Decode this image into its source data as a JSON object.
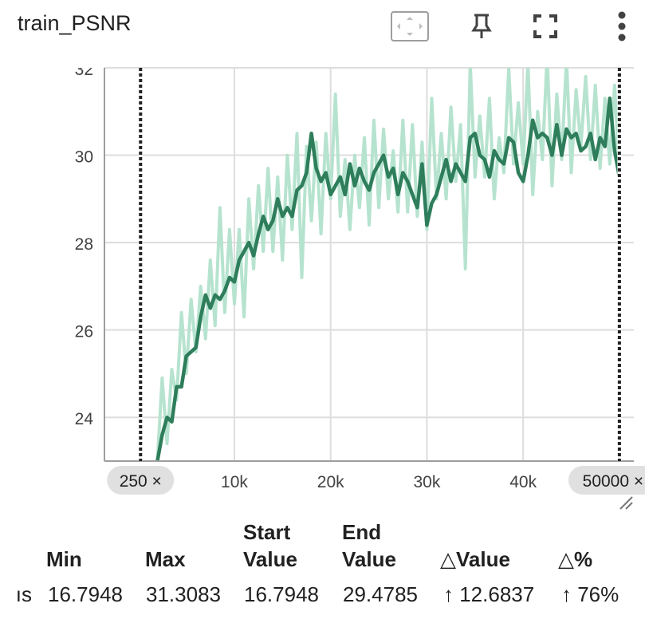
{
  "card": {
    "title": "train_PSNR",
    "icons": [
      "fit-domain-icon",
      "pin-icon",
      "fullscreen-icon",
      "more-vert-icon"
    ]
  },
  "chart_data": {
    "type": "line",
    "xlim": [
      -3500,
      51500
    ],
    "ylim": [
      23.0,
      32.0
    ],
    "y_ticks": [
      24,
      26,
      28,
      30,
      32
    ],
    "x_ticks": [
      {
        "value": 10000,
        "label": "10k"
      },
      {
        "value": 20000,
        "label": "20k"
      },
      {
        "value": 30000,
        "label": "30k"
      },
      {
        "value": 40000,
        "label": "40k"
      }
    ],
    "range_markers": [
      {
        "value": 250,
        "label": "250 ×"
      },
      {
        "value": 50000,
        "label": "50000 ×"
      }
    ],
    "grid": true,
    "colors": {
      "smoothed": "#2e7d5b",
      "raw": "#b6e3cf",
      "grid": "#dddddd",
      "marker": "#212121"
    },
    "series": [
      {
        "role": "raw",
        "x": [
          2000,
          2500,
          3000,
          3500,
          4000,
          4500,
          5000,
          5500,
          6000,
          6500,
          7000,
          7500,
          8000,
          8500,
          9000,
          9500,
          10000,
          10500,
          11000,
          11500,
          12000,
          12500,
          13000,
          13500,
          14000,
          14500,
          15000,
          15500,
          16000,
          16500,
          17000,
          17500,
          18000,
          18500,
          19000,
          19500,
          20000,
          20500,
          21000,
          21500,
          22000,
          22500,
          23000,
          23500,
          24000,
          24500,
          25000,
          25500,
          26000,
          26500,
          27000,
          27500,
          28000,
          28500,
          29000,
          29500,
          30000,
          30500,
          31000,
          31500,
          32000,
          32500,
          33000,
          33500,
          34000,
          34500,
          35000,
          35500,
          36000,
          36500,
          37000,
          37500,
          38000,
          38500,
          39000,
          39500,
          40000,
          40500,
          41000,
          41500,
          42000,
          42500,
          43000,
          43500,
          44000,
          44500,
          45000,
          45500,
          46000,
          46500,
          47000,
          47500,
          48000,
          48500,
          49000,
          49500,
          50000
        ],
        "y": [
          23.0,
          24.9,
          23.4,
          25.1,
          24.4,
          26.4,
          25.0,
          26.7,
          25.5,
          27.0,
          25.8,
          27.6,
          26.1,
          28.8,
          26.4,
          28.3,
          26.6,
          28.3,
          26.3,
          29.0,
          27.4,
          29.3,
          27.8,
          29.7,
          27.8,
          29.5,
          27.6,
          30.0,
          28.3,
          30.5,
          27.2,
          30.2,
          28.5,
          30.3,
          28.2,
          30.5,
          29.0,
          31.4,
          28.6,
          29.9,
          28.3,
          30.0,
          28.8,
          30.4,
          28.4,
          30.8,
          28.8,
          30.6,
          29.0,
          30.1,
          28.7,
          30.8,
          28.7,
          30.7,
          28.6,
          30.3,
          28.3,
          31.3,
          29.0,
          30.5,
          29.0,
          31.1,
          29.4,
          30.7,
          27.4,
          32.1,
          29.5,
          30.9,
          29.5,
          31.3,
          29.0,
          30.4,
          29.6,
          32.0,
          29.8,
          31.2,
          29.8,
          32.1,
          29.1,
          31.0,
          29.9,
          32.3,
          29.3,
          31.4,
          29.9,
          32.2,
          29.6,
          31.5,
          30.2,
          31.8,
          29.9,
          31.6,
          29.7,
          31.3,
          29.8,
          31.6,
          29.5
        ]
      },
      {
        "role": "smoothed",
        "x": [
          2000,
          2500,
          3000,
          3500,
          4000,
          4500,
          5000,
          5500,
          6000,
          6500,
          7000,
          7500,
          8000,
          8500,
          9000,
          9500,
          10000,
          10500,
          11000,
          11500,
          12000,
          12500,
          13000,
          13500,
          14000,
          14500,
          15000,
          15500,
          16000,
          16500,
          17000,
          17500,
          18000,
          18500,
          19000,
          19500,
          20000,
          20500,
          21000,
          21500,
          22000,
          22500,
          23000,
          23500,
          24000,
          24500,
          25000,
          25500,
          26000,
          26500,
          27000,
          27500,
          28000,
          28500,
          29000,
          29500,
          30000,
          30500,
          31000,
          31500,
          32000,
          32500,
          33000,
          33500,
          34000,
          34500,
          35000,
          35500,
          36000,
          36500,
          37000,
          37500,
          38000,
          38500,
          39000,
          39500,
          40000,
          40500,
          41000,
          41500,
          42000,
          42500,
          43000,
          43500,
          44000,
          44500,
          45000,
          45500,
          46000,
          46500,
          47000,
          47500,
          48000,
          48500,
          49000,
          49500,
          50000
        ],
        "y": [
          23.0,
          23.6,
          24.0,
          23.9,
          24.7,
          24.7,
          25.4,
          25.5,
          25.6,
          26.3,
          26.8,
          26.5,
          26.8,
          26.7,
          26.9,
          27.2,
          27.1,
          27.6,
          27.8,
          28.0,
          27.7,
          28.2,
          28.6,
          28.3,
          28.5,
          29.0,
          28.6,
          28.8,
          28.6,
          29.2,
          29.3,
          29.6,
          30.5,
          29.7,
          29.4,
          29.6,
          29.1,
          29.3,
          29.5,
          29.1,
          29.8,
          29.3,
          29.7,
          29.4,
          29.2,
          29.6,
          29.8,
          30.0,
          29.5,
          29.7,
          29.1,
          29.6,
          29.4,
          29.1,
          28.8,
          29.8,
          28.4,
          28.9,
          29.1,
          29.5,
          29.9,
          29.4,
          29.8,
          29.6,
          29.4,
          30.4,
          30.5,
          30.0,
          29.9,
          29.5,
          30.1,
          29.9,
          29.8,
          30.4,
          30.3,
          29.6,
          29.4,
          30.0,
          30.8,
          30.4,
          30.5,
          30.4,
          30.0,
          30.7,
          30.0,
          30.6,
          30.4,
          30.5,
          30.1,
          30.2,
          30.5,
          29.9,
          30.4,
          30.2,
          31.3,
          30.1,
          29.5
        ]
      }
    ]
  },
  "stats": {
    "headers": [
      {
        "line1": "",
        "line2": "Min"
      },
      {
        "line1": "",
        "line2": "Max"
      },
      {
        "line1": "Start",
        "line2": "Value"
      },
      {
        "line1": "End",
        "line2": "Value"
      },
      {
        "line1": "",
        "line2": "△Value"
      },
      {
        "line1": "",
        "line2": "△%"
      }
    ],
    "row": {
      "name_fragment": "ıs",
      "min": "16.7948",
      "max": "31.3083",
      "start_value": "16.7948",
      "end_value": "29.4785",
      "delta_value": "↑ 12.6837",
      "delta_percent": "↑ 76%"
    }
  }
}
